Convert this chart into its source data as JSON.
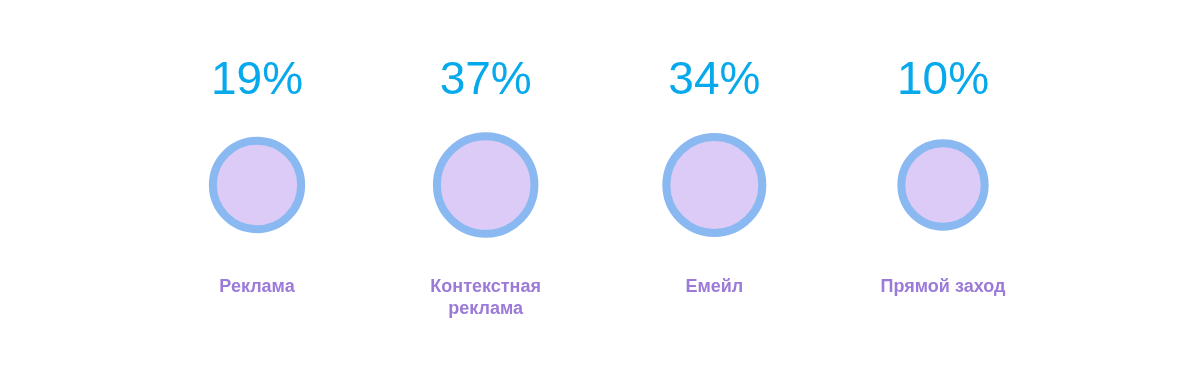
{
  "chart_data": {
    "type": "other",
    "categories": [
      "Реклама",
      "Контекстная реклама",
      "Емейл",
      "Прямой заход"
    ],
    "values": [
      19,
      37,
      34,
      10
    ],
    "value_labels": [
      "19%",
      "37%",
      "34%",
      "10%"
    ],
    "color": "#dccbf6"
  }
}
